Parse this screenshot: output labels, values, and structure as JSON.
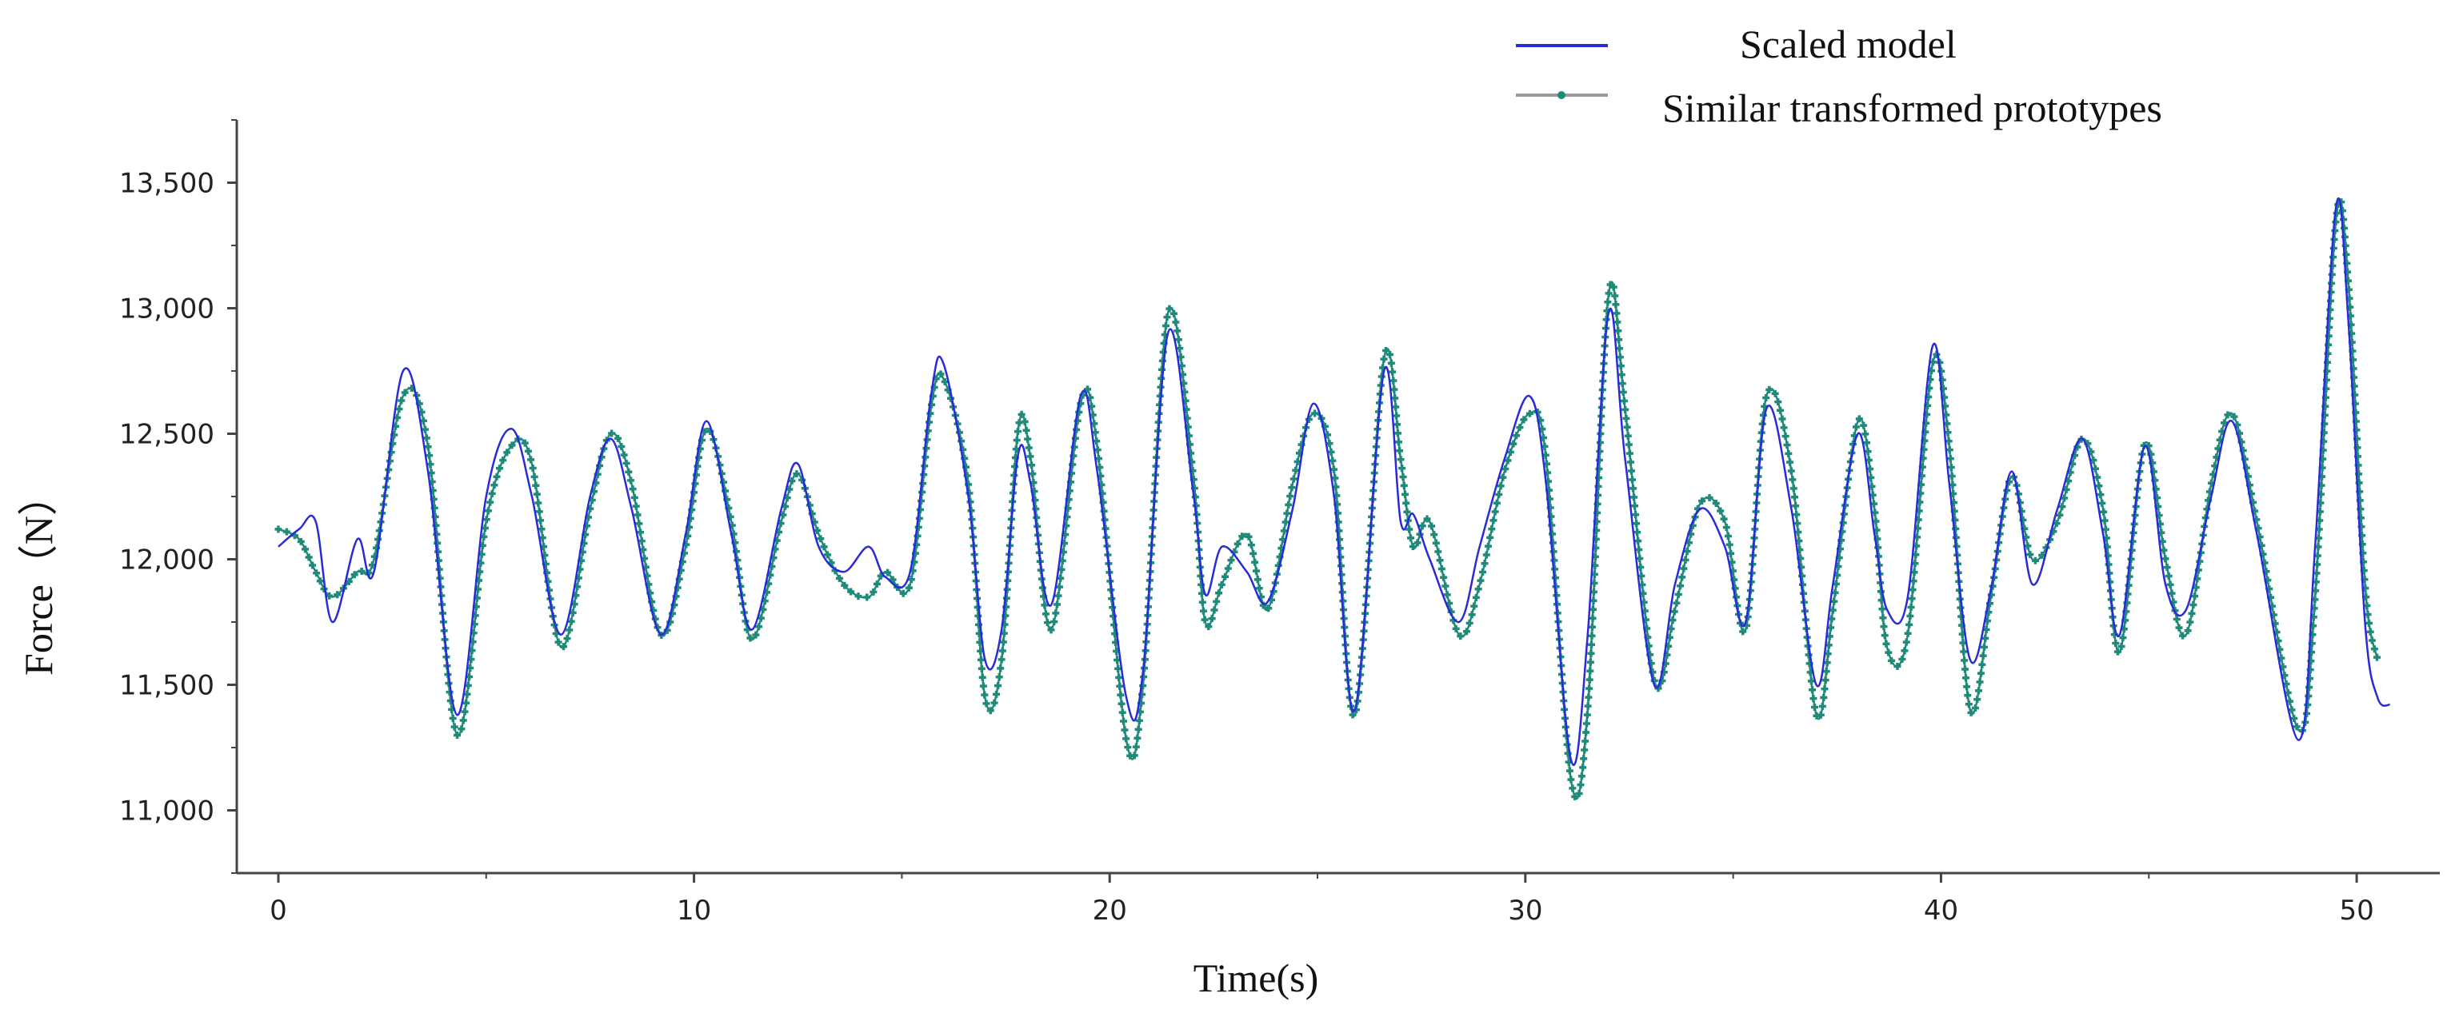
{
  "chart_data": {
    "type": "line",
    "title": "",
    "xlabel": "Time(s)",
    "ylabel": "Force（N）",
    "xlim": [
      -1,
      52
    ],
    "ylim": [
      10750,
      13750
    ],
    "xticks": [
      0,
      10,
      20,
      30,
      40,
      50
    ],
    "yticks": [
      11000,
      11500,
      12000,
      12500,
      13000,
      13500
    ],
    "xtick_labels": [
      "0",
      "10",
      "20",
      "30",
      "40",
      "50"
    ],
    "ytick_labels": [
      "11,000",
      "11,500",
      "12,000",
      "12,500",
      "13,000",
      "13,500"
    ],
    "legend_position": "top-right",
    "series": [
      {
        "name": "Scaled model",
        "color": "#2a2ad8",
        "marker": "none",
        "points": [
          [
            0,
            12050
          ],
          [
            0.5,
            12120
          ],
          [
            0.9,
            12150
          ],
          [
            1.3,
            11750
          ],
          [
            1.9,
            12080
          ],
          [
            2.3,
            11950
          ],
          [
            3.0,
            12750
          ],
          [
            3.6,
            12350
          ],
          [
            4.3,
            11380
          ],
          [
            5.0,
            12250
          ],
          [
            5.6,
            12520
          ],
          [
            6.1,
            12250
          ],
          [
            6.8,
            11700
          ],
          [
            7.5,
            12250
          ],
          [
            8.0,
            12480
          ],
          [
            8.5,
            12200
          ],
          [
            9.2,
            11700
          ],
          [
            9.8,
            12100
          ],
          [
            10.3,
            12550
          ],
          [
            10.9,
            12100
          ],
          [
            11.4,
            11720
          ],
          [
            12.1,
            12200
          ],
          [
            12.5,
            12380
          ],
          [
            13.0,
            12050
          ],
          [
            13.6,
            11950
          ],
          [
            14.2,
            12050
          ],
          [
            14.6,
            11930
          ],
          [
            15.2,
            11950
          ],
          [
            15.7,
            12650
          ],
          [
            16.0,
            12780
          ],
          [
            16.6,
            12250
          ],
          [
            17.0,
            11600
          ],
          [
            17.4,
            11720
          ],
          [
            17.8,
            12420
          ],
          [
            18.1,
            12300
          ],
          [
            18.6,
            11820
          ],
          [
            19.3,
            12650
          ],
          [
            19.7,
            12350
          ],
          [
            20.4,
            11450
          ],
          [
            20.8,
            11550
          ],
          [
            21.4,
            12900
          ],
          [
            22.0,
            12280
          ],
          [
            22.3,
            11860
          ],
          [
            22.7,
            12050
          ],
          [
            23.3,
            11950
          ],
          [
            23.8,
            11830
          ],
          [
            24.4,
            12200
          ],
          [
            24.9,
            12620
          ],
          [
            25.4,
            12250
          ],
          [
            25.9,
            11400
          ],
          [
            26.6,
            12750
          ],
          [
            27.0,
            12150
          ],
          [
            27.3,
            12180
          ],
          [
            27.7,
            12000
          ],
          [
            28.4,
            11750
          ],
          [
            28.9,
            12050
          ],
          [
            29.5,
            12400
          ],
          [
            30.1,
            12650
          ],
          [
            30.5,
            12300
          ],
          [
            31.1,
            11200
          ],
          [
            31.5,
            11700
          ],
          [
            32.0,
            12980
          ],
          [
            32.4,
            12400
          ],
          [
            33.1,
            11500
          ],
          [
            33.6,
            11900
          ],
          [
            34.2,
            12200
          ],
          [
            34.8,
            12050
          ],
          [
            35.3,
            11750
          ],
          [
            35.8,
            12600
          ],
          [
            36.4,
            12200
          ],
          [
            37.0,
            11500
          ],
          [
            37.4,
            11900
          ],
          [
            38.0,
            12500
          ],
          [
            38.4,
            12100
          ],
          [
            38.7,
            11800
          ],
          [
            39.2,
            11850
          ],
          [
            39.8,
            12850
          ],
          [
            40.2,
            12300
          ],
          [
            40.7,
            11600
          ],
          [
            41.2,
            11880
          ],
          [
            41.7,
            12350
          ],
          [
            42.2,
            11900
          ],
          [
            42.8,
            12200
          ],
          [
            43.4,
            12480
          ],
          [
            43.9,
            12100
          ],
          [
            44.3,
            11700
          ],
          [
            44.9,
            12450
          ],
          [
            45.4,
            11900
          ],
          [
            45.9,
            11800
          ],
          [
            46.5,
            12250
          ],
          [
            47.0,
            12550
          ],
          [
            47.6,
            12100
          ],
          [
            48.6,
            11280
          ],
          [
            49.0,
            12050
          ],
          [
            49.5,
            13400
          ],
          [
            49.8,
            12950
          ],
          [
            50.2,
            11750
          ],
          [
            50.5,
            11450
          ],
          [
            50.8,
            11420
          ]
        ]
      },
      {
        "name": "Similar transformed prototypes",
        "color": "#1f8a7a",
        "marker": "dot",
        "points": [
          [
            0,
            12120
          ],
          [
            0.5,
            12080
          ],
          [
            0.9,
            11950
          ],
          [
            1.3,
            11850
          ],
          [
            1.9,
            11950
          ],
          [
            2.3,
            12000
          ],
          [
            3.0,
            12650
          ],
          [
            3.6,
            12450
          ],
          [
            4.3,
            11300
          ],
          [
            5.0,
            12150
          ],
          [
            5.6,
            12450
          ],
          [
            6.1,
            12380
          ],
          [
            6.8,
            11650
          ],
          [
            7.5,
            12200
          ],
          [
            8.0,
            12500
          ],
          [
            8.5,
            12300
          ],
          [
            9.2,
            11700
          ],
          [
            9.8,
            12050
          ],
          [
            10.3,
            12520
          ],
          [
            10.9,
            12150
          ],
          [
            11.4,
            11680
          ],
          [
            12.1,
            12150
          ],
          [
            12.5,
            12340
          ],
          [
            13.0,
            12100
          ],
          [
            13.6,
            11900
          ],
          [
            14.2,
            11850
          ],
          [
            14.6,
            11950
          ],
          [
            15.2,
            11900
          ],
          [
            15.7,
            12600
          ],
          [
            16.0,
            12720
          ],
          [
            16.6,
            12300
          ],
          [
            17.0,
            11450
          ],
          [
            17.4,
            11600
          ],
          [
            17.8,
            12520
          ],
          [
            18.1,
            12400
          ],
          [
            18.6,
            11720
          ],
          [
            19.3,
            12620
          ],
          [
            19.7,
            12450
          ],
          [
            20.4,
            11280
          ],
          [
            20.8,
            11500
          ],
          [
            21.4,
            12980
          ],
          [
            22.0,
            12350
          ],
          [
            22.3,
            11750
          ],
          [
            22.7,
            11900
          ],
          [
            23.3,
            12100
          ],
          [
            23.8,
            11800
          ],
          [
            24.4,
            12300
          ],
          [
            24.9,
            12580
          ],
          [
            25.4,
            12350
          ],
          [
            25.9,
            11380
          ],
          [
            26.6,
            12800
          ],
          [
            27.0,
            12400
          ],
          [
            27.3,
            12050
          ],
          [
            27.7,
            12150
          ],
          [
            28.4,
            11700
          ],
          [
            28.9,
            11900
          ],
          [
            29.5,
            12350
          ],
          [
            30.1,
            12580
          ],
          [
            30.5,
            12400
          ],
          [
            31.1,
            11120
          ],
          [
            31.5,
            11400
          ],
          [
            32.0,
            13050
          ],
          [
            32.4,
            12600
          ],
          [
            33.1,
            11520
          ],
          [
            33.6,
            11800
          ],
          [
            34.2,
            12220
          ],
          [
            34.8,
            12150
          ],
          [
            35.3,
            11720
          ],
          [
            35.8,
            12650
          ],
          [
            36.4,
            12350
          ],
          [
            37.0,
            11380
          ],
          [
            37.4,
            11800
          ],
          [
            38.0,
            12550
          ],
          [
            38.4,
            12200
          ],
          [
            38.7,
            11650
          ],
          [
            39.2,
            11700
          ],
          [
            39.8,
            12780
          ],
          [
            40.2,
            12450
          ],
          [
            40.7,
            11400
          ],
          [
            41.2,
            11850
          ],
          [
            41.7,
            12330
          ],
          [
            42.2,
            12000
          ],
          [
            42.8,
            12150
          ],
          [
            43.4,
            12480
          ],
          [
            43.9,
            12200
          ],
          [
            44.3,
            11630
          ],
          [
            44.9,
            12460
          ],
          [
            45.4,
            12000
          ],
          [
            45.9,
            11700
          ],
          [
            46.5,
            12300
          ],
          [
            47.0,
            12580
          ],
          [
            47.6,
            12150
          ],
          [
            48.6,
            11320
          ],
          [
            49.0,
            11850
          ],
          [
            49.5,
            13350
          ],
          [
            49.8,
            13100
          ],
          [
            50.2,
            11900
          ],
          [
            50.5,
            11600
          ]
        ]
      }
    ]
  }
}
